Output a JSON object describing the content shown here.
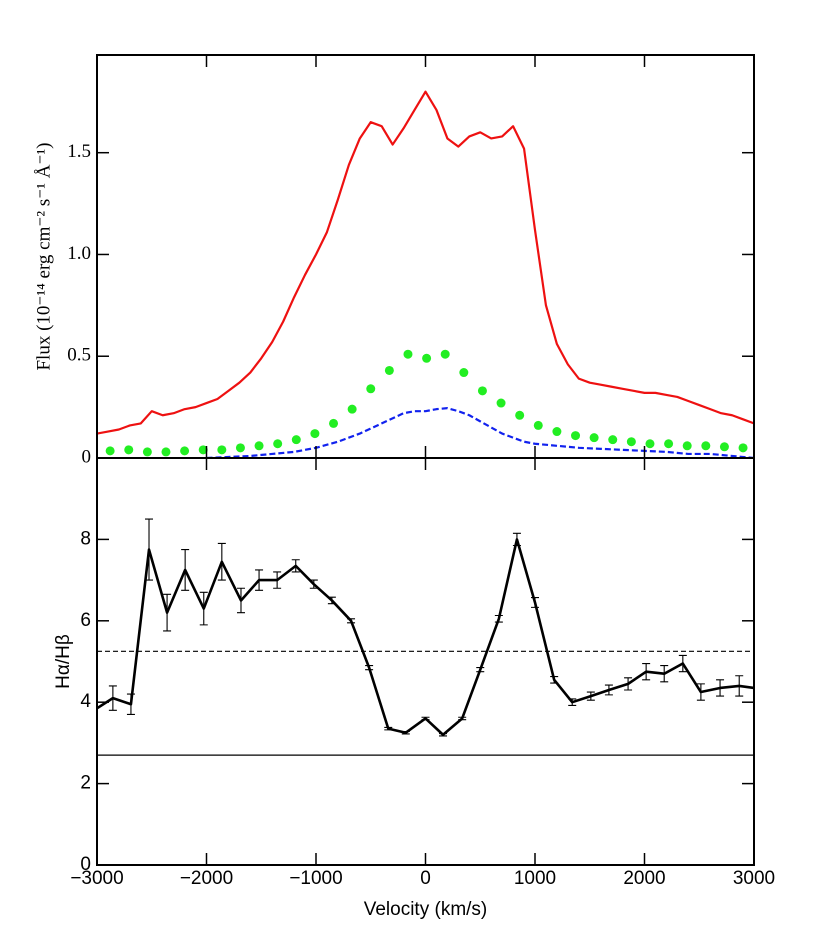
{
  "chart_data": [
    {
      "type": "line",
      "ylabel": "Flux (10⁻¹⁴ erg cm⁻² s⁻¹ Å⁻¹)",
      "xlim": [
        -3000,
        3000
      ],
      "ylim": [
        0,
        1.98
      ],
      "xticks": [
        -3000,
        -2000,
        -1000,
        0,
        1000,
        2000,
        3000
      ],
      "yticks": [
        0,
        0.5,
        {
          "value": 1,
          "label": "1.0"
        },
        1.5
      ],
      "series": [
        {
          "color": "#ee1111",
          "style": "solid",
          "x": [
            -3000,
            -2900,
            -2800,
            -2700,
            -2600,
            -2500,
            -2400,
            -2300,
            -2200,
            -2100,
            -2000,
            -1900,
            -1800,
            -1700,
            -1600,
            -1500,
            -1400,
            -1300,
            -1200,
            -1100,
            -1000,
            -900,
            -800,
            -700,
            -600,
            -500,
            -400,
            -300,
            -200,
            -100,
            0,
            100,
            200,
            300,
            400,
            500,
            600,
            700,
            800,
            900,
            1000,
            1100,
            1200,
            1300,
            1400,
            1500,
            1600,
            1700,
            1800,
            1900,
            2000,
            2100,
            2200,
            2300,
            2400,
            2500,
            2600,
            2700,
            2800,
            2900,
            3000
          ],
          "values": [
            0.12,
            0.13,
            0.14,
            0.16,
            0.17,
            0.23,
            0.21,
            0.22,
            0.24,
            0.25,
            0.27,
            0.29,
            0.33,
            0.37,
            0.42,
            0.49,
            0.57,
            0.67,
            0.79,
            0.9,
            1.0,
            1.11,
            1.27,
            1.44,
            1.57,
            1.65,
            1.63,
            1.54,
            1.62,
            1.71,
            1.8,
            1.71,
            1.57,
            1.53,
            1.58,
            1.6,
            1.57,
            1.58,
            1.63,
            1.52,
            1.12,
            0.75,
            0.56,
            0.46,
            0.39,
            0.37,
            0.36,
            0.35,
            0.34,
            0.33,
            0.32,
            0.32,
            0.31,
            0.3,
            0.28,
            0.26,
            0.24,
            0.22,
            0.21,
            0.19,
            0.17
          ]
        },
        {
          "color": "#22ee22",
          "style": "dots",
          "x": [
            -2880,
            -2710,
            -2540,
            -2370,
            -2200,
            -2030,
            -1860,
            -1690,
            -1520,
            -1350,
            -1180,
            -1010,
            -840,
            -670,
            -500,
            -330,
            -160,
            10,
            180,
            350,
            520,
            690,
            860,
            1030,
            1200,
            1370,
            1540,
            1710,
            1880,
            2050,
            2220,
            2390,
            2560,
            2730,
            2900
          ],
          "values": [
            0.035,
            0.04,
            0.03,
            0.03,
            0.035,
            0.04,
            0.04,
            0.05,
            0.06,
            0.07,
            0.09,
            0.12,
            0.17,
            0.24,
            0.34,
            0.43,
            0.51,
            0.49,
            0.51,
            0.42,
            0.33,
            0.27,
            0.21,
            0.16,
            0.13,
            0.11,
            0.1,
            0.09,
            0.08,
            0.07,
            0.07,
            0.06,
            0.06,
            0.055,
            0.05
          ]
        },
        {
          "color": "#1122ee",
          "style": "dashed",
          "x": [
            -2000,
            -1800,
            -1600,
            -1400,
            -1200,
            -1000,
            -800,
            -600,
            -400,
            -200,
            -100,
            0,
            100,
            200,
            300,
            400,
            500,
            600,
            700,
            800,
            900,
            1000,
            1200,
            1400,
            1600,
            1800,
            2000,
            2200,
            2400,
            2600,
            2800,
            3000
          ],
          "values": [
            0,
            0.005,
            0.01,
            0.02,
            0.03,
            0.05,
            0.08,
            0.12,
            0.17,
            0.22,
            0.23,
            0.23,
            0.24,
            0.245,
            0.23,
            0.21,
            0.18,
            0.15,
            0.12,
            0.1,
            0.08,
            0.07,
            0.06,
            0.05,
            0.045,
            0.04,
            0.035,
            0.03,
            0.02,
            0.02,
            0.01,
            0
          ]
        }
      ]
    },
    {
      "type": "line",
      "xlabel": "Velocity (km/s)",
      "ylabel": "Hα/Hβ",
      "xlim": [
        -3000,
        3000
      ],
      "ylim": [
        0,
        10
      ],
      "xticks": [
        {
          "value": -3000,
          "label": "−3000"
        },
        {
          "value": -2000,
          "label": "−2000"
        },
        {
          "value": -1000,
          "label": "−1000"
        },
        0,
        1000,
        2000,
        3000
      ],
      "yticks": [
        0,
        2,
        4,
        6,
        8
      ],
      "hlines": [
        {
          "value": 5.25,
          "style": "dashed"
        },
        {
          "value": 2.7,
          "style": "solid"
        }
      ],
      "series": [
        {
          "color": "#000000",
          "style": "solid",
          "x": [
            -3000,
            -2855,
            -2690,
            -2525,
            -2360,
            -2195,
            -2025,
            -1860,
            -1685,
            -1520,
            -1355,
            -1185,
            -1020,
            -855,
            -680,
            -515,
            -340,
            -180,
            0,
            160,
            335,
            500,
            670,
            835,
            1000,
            1175,
            1340,
            1510,
            1675,
            1850,
            2015,
            2180,
            2350,
            2515,
            2690,
            2865,
            3000
          ],
          "values": [
            3.85,
            4.1,
            3.95,
            7.75,
            6.2,
            7.25,
            6.3,
            7.45,
            6.5,
            7.0,
            7.0,
            7.35,
            6.9,
            6.5,
            6.0,
            4.85,
            3.35,
            3.25,
            3.6,
            3.2,
            3.6,
            4.8,
            6.05,
            8.0,
            6.45,
            4.55,
            4.0,
            4.15,
            4.3,
            4.45,
            4.75,
            4.7,
            4.95,
            4.25,
            4.35,
            4.4,
            4.35
          ],
          "errors": [
            null,
            0.3,
            0.25,
            0.75,
            0.45,
            0.5,
            0.4,
            0.45,
            0.3,
            0.25,
            0.2,
            0.15,
            0.1,
            0.08,
            0.05,
            0.05,
            0.03,
            0.03,
            0.03,
            0.03,
            0.03,
            0.05,
            0.08,
            0.15,
            0.12,
            0.08,
            0.08,
            0.1,
            0.12,
            0.15,
            0.2,
            0.2,
            0.2,
            0.2,
            0.2,
            0.25,
            null
          ]
        }
      ]
    }
  ]
}
